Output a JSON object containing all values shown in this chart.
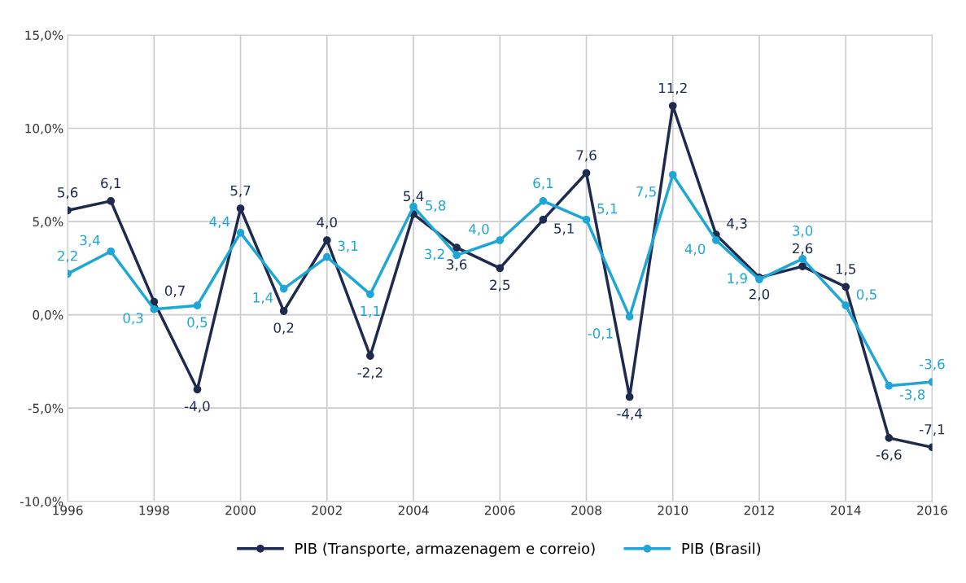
{
  "chart_data": {
    "type": "line",
    "x": [
      1996,
      1997,
      1998,
      1999,
      2000,
      2001,
      2002,
      2003,
      2004,
      2005,
      2006,
      2007,
      2008,
      2009,
      2010,
      2011,
      2012,
      2013,
      2014,
      2015,
      2016
    ],
    "series": [
      {
        "name": "PIB (Transporte, armazenagem e correio)",
        "color": "#1e2a4e",
        "values": [
          5.6,
          6.1,
          0.7,
          -4.0,
          5.7,
          0.2,
          4.0,
          -2.2,
          5.4,
          3.6,
          2.5,
          5.1,
          7.6,
          -4.4,
          11.2,
          4.3,
          2.0,
          2.6,
          1.5,
          -6.6,
          -7.1
        ],
        "value_labels": [
          "5,6",
          "6,1",
          "0,7",
          "-4,0",
          "5,7",
          "0,2",
          "4,0",
          "-2,2",
          "5,4",
          "3,6",
          "2,5",
          "5,1",
          "7,6",
          "-4,4",
          "11,2",
          "4,3",
          "2,0",
          "2,6",
          "1,5",
          "-6,6",
          "-7,1"
        ]
      },
      {
        "name": "PIB (Brasil)",
        "color": "#1ea6d6",
        "values": [
          2.2,
          3.4,
          0.3,
          0.5,
          4.4,
          1.4,
          3.1,
          1.1,
          5.8,
          3.2,
          4.0,
          6.1,
          5.1,
          -0.1,
          7.5,
          4.0,
          1.9,
          3.0,
          0.5,
          -3.8,
          -3.6
        ],
        "value_labels": [
          "2,2",
          "3,4",
          "0,3",
          "0,5",
          "4,4",
          "1,4",
          "3,1",
          "1,1",
          "5,8",
          "3,2",
          "4,0",
          "6,1",
          "5,1",
          "-0,1",
          "7,5",
          "4,0",
          "1,9",
          "3,0",
          "0,5",
          "-3,8",
          "-3,6"
        ]
      }
    ],
    "xlim": [
      1996,
      2016
    ],
    "xticks": [
      1996,
      1998,
      2000,
      2002,
      2004,
      2006,
      2008,
      2010,
      2012,
      2014,
      2016
    ],
    "ylim": [
      -10,
      15
    ],
    "yticks": [
      {
        "value": -10,
        "label": "-10,0%"
      },
      {
        "value": -5,
        "label": "-5,0%"
      },
      {
        "value": 0,
        "label": "0,0%"
      },
      {
        "value": 5,
        "label": "5,0%"
      },
      {
        "value": 10,
        "label": "10,0%"
      },
      {
        "value": 15,
        "label": "15,0%"
      }
    ],
    "grid": true,
    "legend": "bottom",
    "marker": "circle",
    "line_style": "solid"
  }
}
